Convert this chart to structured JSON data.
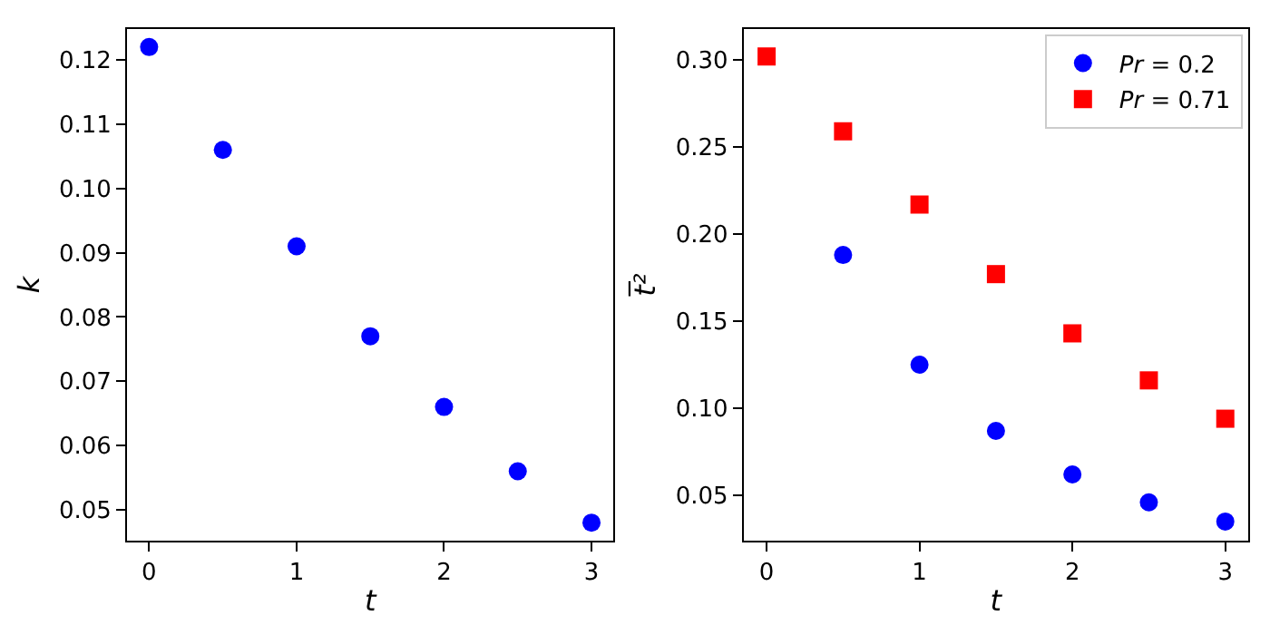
{
  "chart_data": [
    {
      "type": "scatter",
      "xlabel": "t",
      "ylabel": "k",
      "x": [
        0,
        0.5,
        1,
        1.5,
        2,
        2.5,
        3
      ],
      "xlim": [
        -0.15,
        3.15
      ],
      "xticks": [
        0,
        1,
        2,
        3
      ],
      "ylim": [
        0.0452,
        0.1248
      ],
      "yticks": [
        0.05,
        0.06,
        0.07,
        0.08,
        0.09,
        {
          "value": 0.1,
          "label": "0.10"
        },
        0.11,
        0.12
      ],
      "legend": false,
      "marker": "circle",
      "series": [
        {
          "color": "#0000ff",
          "values": [
            0.122,
            0.106,
            0.091,
            0.077,
            0.066,
            0.056,
            0.048
          ]
        }
      ]
    },
    {
      "type": "scatter",
      "xlabel": "t",
      "ylabel": "t̅²",
      "x": [
        0,
        0.5,
        1,
        1.5,
        2,
        2.5,
        3
      ],
      "xlim": [
        -0.15,
        3.15
      ],
      "xticks": [
        0,
        1,
        2,
        3
      ],
      "ylim": [
        0.024,
        0.3177
      ],
      "yticks": [
        0.05,
        {
          "value": 0.1,
          "label": "0.10"
        },
        0.15,
        {
          "value": 0.2,
          "label": "0.20"
        },
        0.25,
        {
          "value": 0.3,
          "label": "0.30"
        }
      ],
      "legend": "top right",
      "series": [
        {
          "name": "Pr = 0.2",
          "color": "#0000ff",
          "marker": "circle",
          "values": [
            null,
            0.188,
            0.125,
            0.087,
            0.062,
            0.046,
            0.035
          ]
        },
        {
          "name": "Pr = 0.71",
          "color": "#ff0000",
          "marker": "square",
          "values": [
            0.302,
            0.259,
            0.217,
            0.177,
            0.143,
            0.116,
            0.094
          ]
        }
      ]
    }
  ]
}
